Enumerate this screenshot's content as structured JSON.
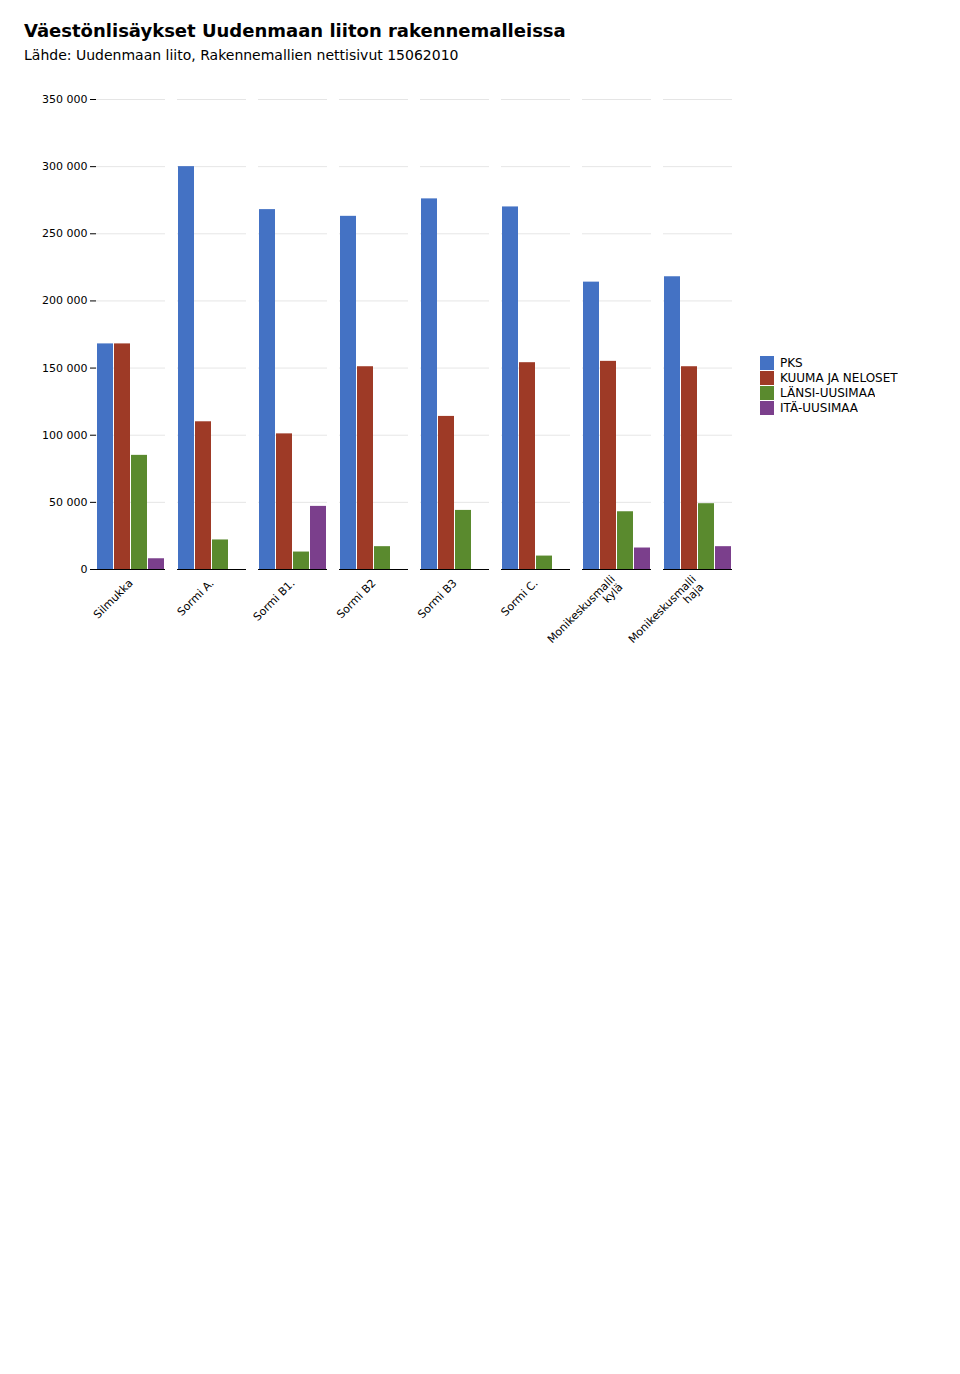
{
  "chart_data": {
    "type": "bar",
    "title": "Väestönlisäykset Uudenmaan liiton rakennemalleissa",
    "subtitle": "Lähde: Uudenmaan liito, Rakennemallien nettisivut 15062010",
    "categories": [
      "Silmukka",
      "Sormi A.",
      "Sormi B1.",
      "Sormi B2",
      "Sormi B3",
      "Sormi C.",
      "Monikeskusmalli\nkylä",
      "Monikeskusmalli\nhaja"
    ],
    "series": [
      {
        "name": "PKS",
        "color": "#4472c4",
        "values": [
          168000,
          300000,
          268000,
          263000,
          276000,
          270000,
          214000,
          218000
        ]
      },
      {
        "name": "KUUMA JA NELOSET",
        "color": "#9e3a26",
        "values": [
          168000,
          110000,
          101000,
          151000,
          114000,
          154000,
          155000,
          151000
        ]
      },
      {
        "name": "LÄNSI-UUSIMAA",
        "color": "#5a8a2e",
        "values": [
          85000,
          22000,
          13000,
          17000,
          44000,
          10000,
          43000,
          49000
        ]
      },
      {
        "name": "ITÄ-UUSIMAA",
        "color": "#7b3f8c",
        "values": [
          8000,
          0,
          47000,
          0,
          0,
          0,
          16000,
          17000
        ]
      }
    ],
    "ylim": [
      0,
      350000
    ],
    "yticks": [
      0,
      {
        "value": 50000,
        "label": "50 000"
      },
      {
        "value": 100000,
        "label": "100 000"
      },
      {
        "value": 150000,
        "label": "150 000"
      },
      {
        "value": 200000,
        "label": "200 000"
      },
      {
        "value": 250000,
        "label": "250 000"
      },
      {
        "value": 300000,
        "label": "300 000"
      },
      {
        "value": 350000,
        "label": "350 000"
      }
    ],
    "grid": true,
    "legend": "right"
  }
}
